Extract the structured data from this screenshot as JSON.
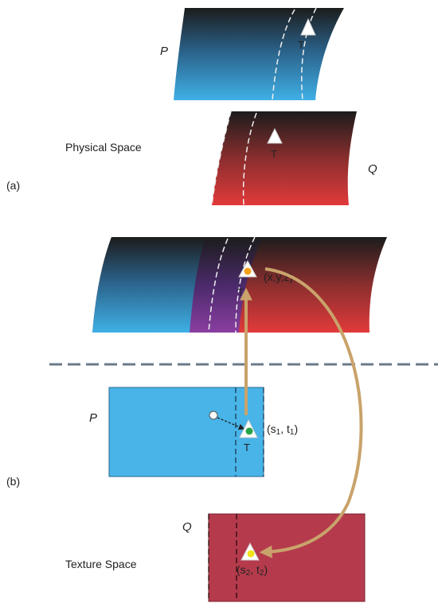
{
  "section_a": {
    "label": "(a)",
    "space_label": "Physical Space",
    "surface_p_label": "P",
    "surface_q_label": "Q",
    "triangle_label": "T"
  },
  "section_b": {
    "label": "(b)",
    "space_label": "Texture Space",
    "triangle_label": "T",
    "point_xyz": "(x,y,z)",
    "texture_p_label": "P",
    "texture_q_label": "Q",
    "coord_p": {
      "s": "s",
      "s_sub": "1",
      "t": "t",
      "t_sub": "1"
    },
    "coord_q": {
      "s": "s",
      "s_sub": "2",
      "t": "t",
      "t_sub": "2"
    }
  },
  "colors": {
    "blue": "#3fb0e6",
    "red": "#e23a3a",
    "dark": "#1c1c1c",
    "purple": "#8a3ea0",
    "texture_blue": "#48b4e8",
    "texture_red": "#b53b4c",
    "arrow": "#c9a36b",
    "point_orange": "#f4a21a",
    "point_green": "#2aa44a",
    "point_yellow": "#f2e21a",
    "divider": "#6b7a8a"
  }
}
